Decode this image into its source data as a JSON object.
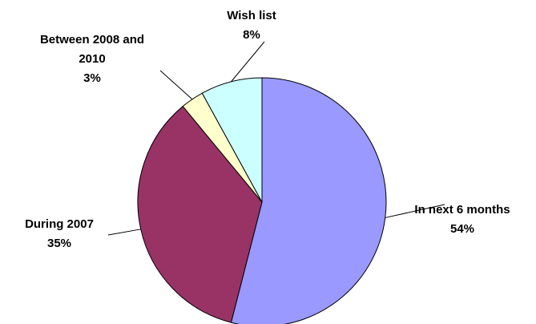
{
  "chart_data": {
    "type": "pie",
    "start_angle_deg": 0,
    "direction": "clockwise",
    "slices": [
      {
        "label": "In next 6 months",
        "value": 54,
        "display": "54%",
        "color": "#9999FF"
      },
      {
        "label": "During 2007",
        "value": 35,
        "display": "35%",
        "color": "#993366"
      },
      {
        "label": "Between 2008 and 2010",
        "value": 3,
        "display": "3%",
        "color": "#FFFFCC"
      },
      {
        "label": "Wish list",
        "value": 8,
        "display": "8%",
        "color": "#CCFFFF"
      }
    ],
    "legend": "none"
  }
}
